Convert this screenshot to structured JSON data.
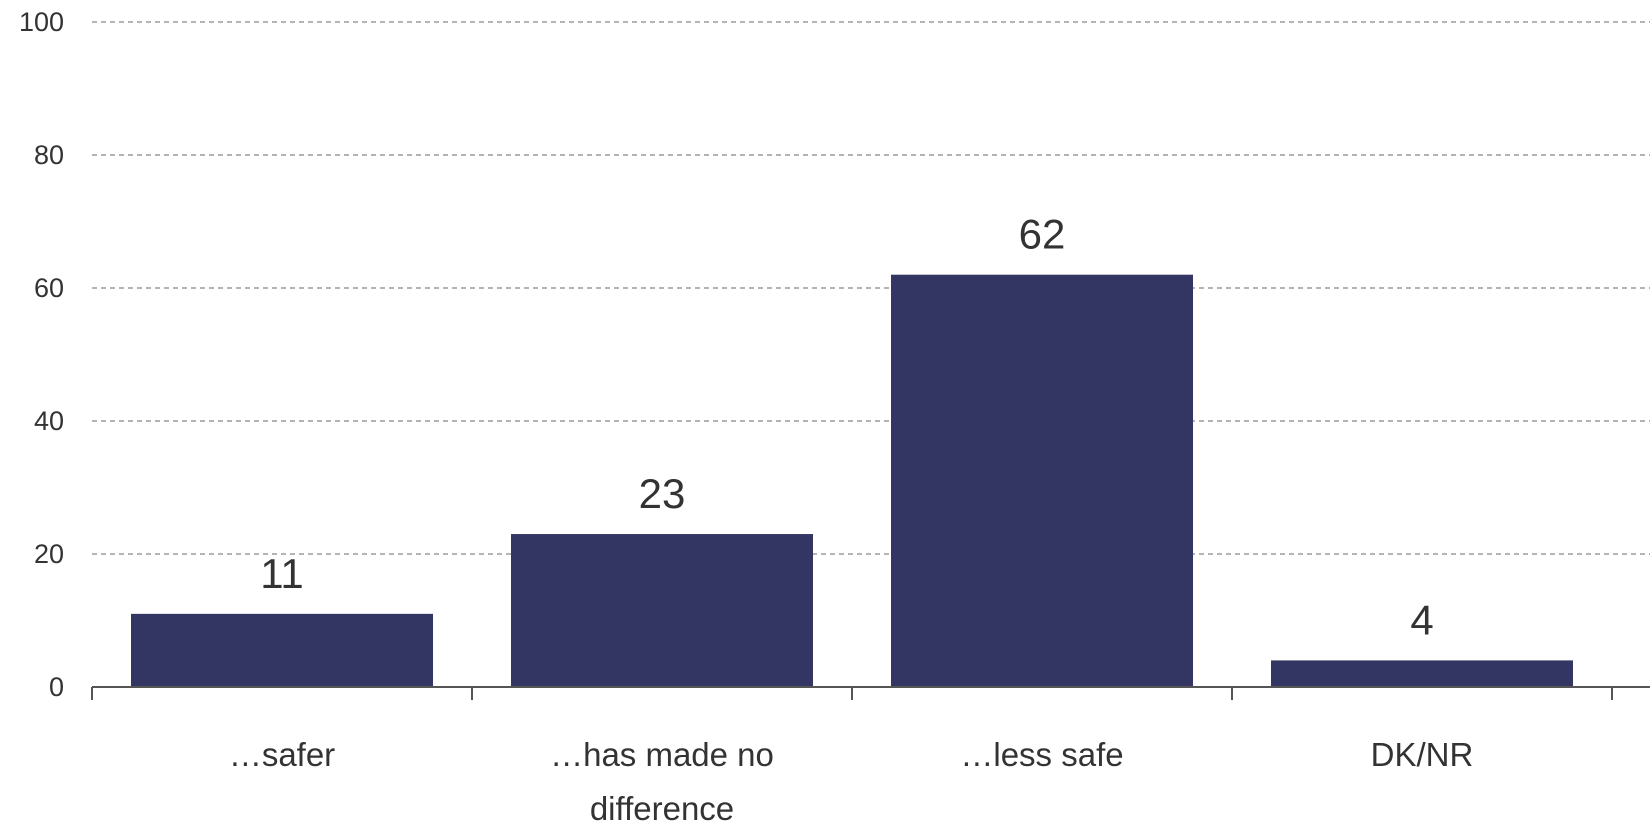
{
  "chart_data": {
    "type": "bar",
    "categories": [
      "…safer",
      "…has made no difference",
      "…less safe",
      "DK/NR"
    ],
    "category_lines": [
      [
        "…safer"
      ],
      [
        "…has made no",
        "difference"
      ],
      [
        "…less safe"
      ],
      [
        "DK/NR"
      ]
    ],
    "values": [
      11,
      23,
      62,
      4
    ],
    "data_labels": [
      "11",
      "23",
      "62",
      "4"
    ],
    "ylim": [
      0,
      100
    ],
    "yticks": [
      0,
      20,
      40,
      60,
      80,
      100
    ],
    "ytick_labels": [
      "0",
      "20",
      "40",
      "60",
      "80",
      "100"
    ],
    "grid": true,
    "legend": "none",
    "title": "",
    "xlabel": "",
    "ylabel": "",
    "colors": {
      "bar": "#333562",
      "grid": "#888888",
      "axis": "#555555",
      "text": "#333333"
    }
  }
}
